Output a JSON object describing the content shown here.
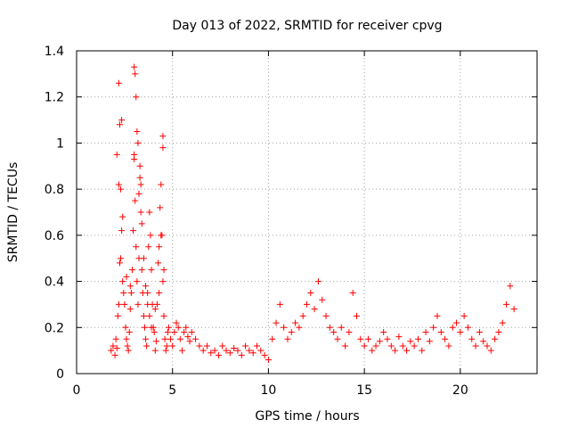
{
  "chart_data": {
    "type": "scatter",
    "title": "Day 013 of 2022, SRMTID for receiver cpvg",
    "xlabel": "GPS time / hours",
    "ylabel": "SRMTID / TECUs",
    "xlim": [
      0,
      24
    ],
    "ylim": [
      0,
      1.4
    ],
    "xticks": [
      0,
      5,
      10,
      15,
      20
    ],
    "yticks": [
      0,
      0.2,
      0.4,
      0.6,
      0.8,
      1,
      1.2,
      1.4
    ],
    "ytick_labels": [
      "0",
      "0.2",
      "0.4",
      "0.6",
      "0.8",
      "1",
      "1.2",
      "1.4"
    ],
    "grid": true,
    "marker": "+",
    "series": [
      {
        "name": "SRMTID",
        "color": "#ff0000",
        "x": [
          1.8,
          1.9,
          2.0,
          2.05,
          2.1,
          2.15,
          2.2,
          2.25,
          2.3,
          2.35,
          2.4,
          2.45,
          2.5,
          2.55,
          2.6,
          2.65,
          2.7,
          2.75,
          2.8,
          2.85,
          2.9,
          2.95,
          3.0,
          3.05,
          3.1,
          3.15,
          3.2,
          3.25,
          3.3,
          3.35,
          3.4,
          3.45,
          3.5,
          3.55,
          3.6,
          3.65,
          3.7,
          3.75,
          3.8,
          3.85,
          3.9,
          3.95,
          4.0,
          4.05,
          4.1,
          4.15,
          4.2,
          4.25,
          4.3,
          4.35,
          4.4,
          4.45,
          4.5,
          4.55,
          4.6,
          4.65,
          4.7,
          4.75,
          4.8,
          4.9,
          5.0,
          5.1,
          5.2,
          5.3,
          5.4,
          5.5,
          5.6,
          5.7,
          5.8,
          5.9,
          6.0,
          6.2,
          6.4,
          6.6,
          6.8,
          7.0,
          7.2,
          7.4,
          7.6,
          7.8,
          8.0,
          8.2,
          8.4,
          8.6,
          8.8,
          9.0,
          9.2,
          9.4,
          9.6,
          9.8,
          10.0,
          10.2,
          10.4,
          10.6,
          10.8,
          11.0,
          11.2,
          11.4,
          11.6,
          11.8,
          12.0,
          12.2,
          12.4,
          12.6,
          12.8,
          13.0,
          13.2,
          13.4,
          13.6,
          13.8,
          14.0,
          14.2,
          14.4,
          14.6,
          14.8,
          15.0,
          15.2,
          15.4,
          15.6,
          15.8,
          16.0,
          16.2,
          16.4,
          16.6,
          16.8,
          17.0,
          17.2,
          17.4,
          17.6,
          17.8,
          18.0,
          18.2,
          18.4,
          18.6,
          18.8,
          19.0,
          19.2,
          19.4,
          19.6,
          19.8,
          20.0,
          20.2,
          20.4,
          20.6,
          20.8,
          21.0,
          21.2,
          21.4,
          21.6,
          21.8,
          22.0,
          22.2,
          22.4,
          22.6,
          22.8,
          2.1,
          2.2,
          2.3,
          2.4,
          2.6,
          2.8,
          3.0,
          3.1,
          3.2,
          3.3,
          3.4,
          3.5,
          3.6,
          3.7,
          3.8,
          3.9,
          4.1,
          4.3,
          4.4,
          4.5,
          2.35,
          3.0,
          3.05,
          3.15,
          3.35,
          2.2,
          2.25,
          3.25,
          4.5,
          4.55
        ],
        "y": [
          0.1,
          0.12,
          0.08,
          0.15,
          0.11,
          0.25,
          0.3,
          0.48,
          0.5,
          0.62,
          0.4,
          0.35,
          0.3,
          0.2,
          0.15,
          0.12,
          0.1,
          0.18,
          0.28,
          0.35,
          0.45,
          0.62,
          0.95,
          0.75,
          0.55,
          0.4,
          0.3,
          0.5,
          0.85,
          0.7,
          0.45,
          0.35,
          0.25,
          0.2,
          0.15,
          0.12,
          0.35,
          0.55,
          0.7,
          0.6,
          0.45,
          0.3,
          0.2,
          0.18,
          0.1,
          0.14,
          0.3,
          0.48,
          0.55,
          0.72,
          0.82,
          0.6,
          0.4,
          0.25,
          0.15,
          0.1,
          0.12,
          0.18,
          0.2,
          0.15,
          0.12,
          0.18,
          0.22,
          0.2,
          0.15,
          0.1,
          0.18,
          0.2,
          0.16,
          0.14,
          0.18,
          0.15,
          0.12,
          0.1,
          0.12,
          0.09,
          0.1,
          0.08,
          0.12,
          0.1,
          0.09,
          0.11,
          0.1,
          0.08,
          0.12,
          0.1,
          0.09,
          0.12,
          0.1,
          0.08,
          0.06,
          0.15,
          0.22,
          0.3,
          0.2,
          0.15,
          0.18,
          0.22,
          0.2,
          0.25,
          0.3,
          0.35,
          0.28,
          0.4,
          0.32,
          0.25,
          0.2,
          0.18,
          0.15,
          0.2,
          0.12,
          0.18,
          0.35,
          0.25,
          0.15,
          0.12,
          0.15,
          0.1,
          0.12,
          0.14,
          0.18,
          0.15,
          0.12,
          0.1,
          0.16,
          0.12,
          0.1,
          0.14,
          0.12,
          0.15,
          0.1,
          0.18,
          0.14,
          0.2,
          0.25,
          0.18,
          0.15,
          0.12,
          0.2,
          0.22,
          0.18,
          0.25,
          0.2,
          0.15,
          0.12,
          0.18,
          0.14,
          0.12,
          0.1,
          0.15,
          0.18,
          0.22,
          0.3,
          0.38,
          0.28,
          0.95,
          1.26,
          0.8,
          0.68,
          0.42,
          0.38,
          1.33,
          1.2,
          1.0,
          0.9,
          0.65,
          0.5,
          0.38,
          0.3,
          0.25,
          0.2,
          0.28,
          0.35,
          0.6,
          0.98,
          1.1,
          0.93,
          1.3,
          1.05,
          0.82,
          0.82,
          1.08,
          0.78,
          1.03,
          0.45
        ]
      }
    ]
  }
}
